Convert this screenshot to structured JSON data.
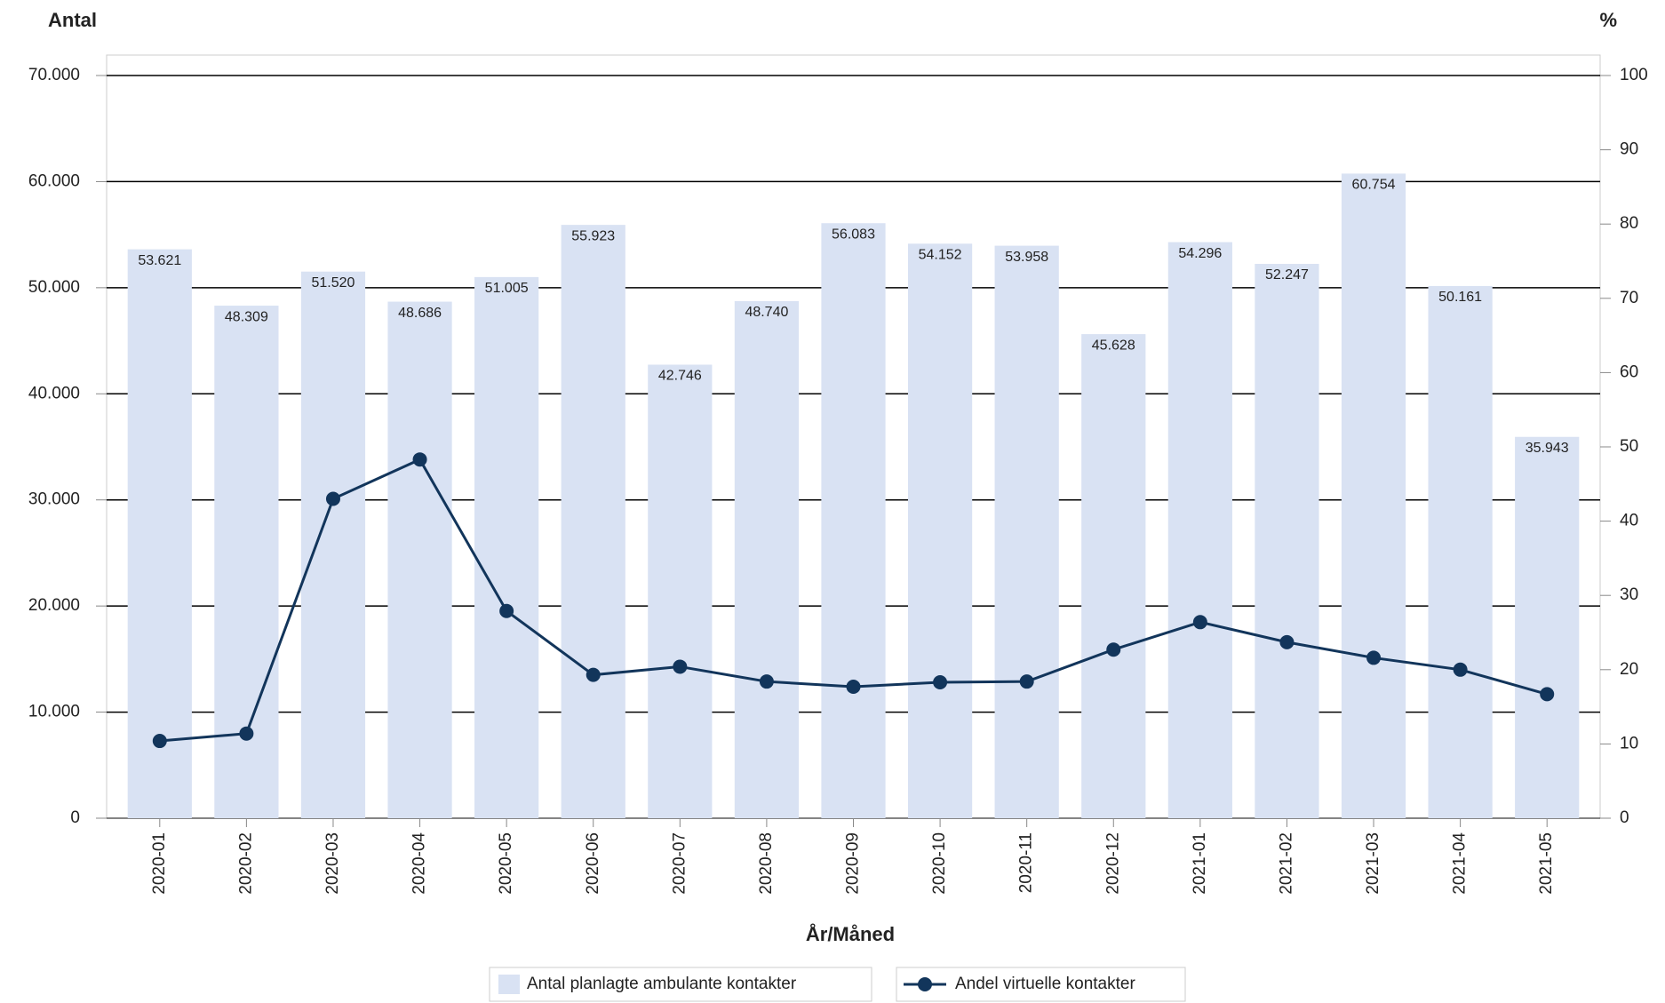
{
  "chart_data": {
    "type": "bar-line",
    "y_label": "Antal",
    "y2_label": "%",
    "x_label": "År/Måned",
    "categories": [
      "2020-01",
      "2020-02",
      "2020-03",
      "2020-04",
      "2020-05",
      "2020-06",
      "2020-07",
      "2020-08",
      "2020-09",
      "2020-10",
      "2020-11",
      "2020-12",
      "2021-01",
      "2021-02",
      "2021-03",
      "2021-04",
      "2021-05"
    ],
    "series": [
      {
        "name": "Antal planlagte ambulante kontakter",
        "type": "bar",
        "color": "#d9e2f3",
        "values": [
          53621,
          48309,
          51520,
          48686,
          51005,
          55923,
          42746,
          48740,
          56083,
          54152,
          53958,
          45628,
          54296,
          52247,
          60754,
          50161,
          35943
        ],
        "value_labels": [
          "53.621",
          "48.309",
          "51.520",
          "48.686",
          "51.005",
          "55.923",
          "42.746",
          "48.740",
          "56.083",
          "54.152",
          "53.958",
          "45.628",
          "54.296",
          "52.247",
          "60.754",
          "50.161",
          "35.943"
        ]
      },
      {
        "name": "Andel virtuelle kontakter",
        "type": "line",
        "axis": "y2",
        "color": "#12355b",
        "values": [
          10.4,
          11.4,
          43,
          48.3,
          27.9,
          19.3,
          20.4,
          18.4,
          17.7,
          18.3,
          18.4,
          22.7,
          26.4,
          23.7,
          21.6,
          20,
          16.7
        ]
      }
    ],
    "ylim": [
      0,
      70000
    ],
    "yticks": [
      {
        "value": 0,
        "label": "0"
      },
      {
        "value": 10000,
        "label": "10.000"
      },
      {
        "value": 20000,
        "label": "20.000"
      },
      {
        "value": 30000,
        "label": "30.000"
      },
      {
        "value": 40000,
        "label": "40.000"
      },
      {
        "value": 50000,
        "label": "50.000"
      },
      {
        "value": 60000,
        "label": "60.000"
      },
      {
        "value": 70000,
        "label": "70.000"
      }
    ],
    "y2lim": [
      0,
      100
    ],
    "y2ticks": [
      0,
      10,
      20,
      30,
      40,
      50,
      60,
      70,
      80,
      90,
      100
    ],
    "grid": true
  }
}
